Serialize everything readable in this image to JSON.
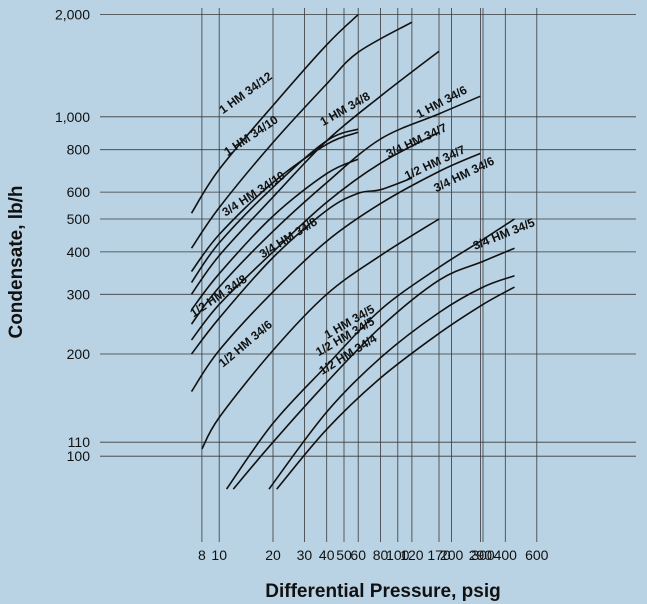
{
  "chart_data": {
    "type": "line",
    "title": "",
    "xlabel": "Differential Pressure, psig",
    "ylabel": "Condensate, lb/h",
    "x_scale": "log",
    "y_scale": "log",
    "xlim": [
      7,
      640
    ],
    "ylim": [
      80,
      2000
    ],
    "grid": true,
    "legend": "none",
    "x_ticks": [
      8,
      10,
      20,
      30,
      40,
      50,
      60,
      80,
      100,
      120,
      170,
      200,
      290,
      300,
      400,
      600
    ],
    "x_tick_labels": [
      "8",
      "10",
      "20",
      "30",
      "40",
      "50",
      "60",
      "80",
      "100",
      "120",
      "170",
      "200",
      "290",
      "300",
      "400",
      "600"
    ],
    "y_ticks": [
      100,
      110,
      200,
      300,
      400,
      500,
      600,
      800,
      1000,
      2000
    ],
    "y_tick_labels": [
      "100",
      "110",
      "200",
      "300",
      "400",
      "500",
      "600",
      "800",
      "1,000",
      "2,000"
    ],
    "series": [
      {
        "name": "1 HM 34/12",
        "x": [
          7,
          10,
          20,
          40,
          60
        ],
        "y": [
          520,
          700,
          1080,
          1630,
          2000
        ]
      },
      {
        "name": "1 HM 34/10",
        "x": [
          7,
          10,
          20,
          40,
          60,
          120
        ],
        "y": [
          410,
          540,
          840,
          1250,
          1550,
          1900
        ]
      },
      {
        "name": "1 HM 34/8",
        "x": [
          7,
          10,
          20,
          40,
          60
        ],
        "y": [
          350,
          450,
          640,
          830,
          900
        ]
      },
      {
        "name": "1 HM 34/6",
        "x": [
          7,
          10,
          20,
          40,
          80,
          170
        ],
        "y": [
          300,
          390,
          580,
          850,
          1150,
          1560
        ]
      },
      {
        "name": "3/4 HM 34/10",
        "x": [
          7,
          10,
          20,
          40,
          60
        ],
        "y": [
          325,
          425,
          620,
          850,
          920
        ]
      },
      {
        "name": "3/4 HM 34/8",
        "x": [
          7,
          10,
          20,
          40,
          60
        ],
        "y": [
          270,
          345,
          510,
          680,
          750
        ]
      },
      {
        "name": "3/4 HM 34/7",
        "x": [
          7,
          10,
          20,
          40,
          80,
          170,
          290
        ],
        "y": [
          245,
          315,
          460,
          640,
          860,
          1020,
          1150
        ]
      },
      {
        "name": "1/2 HM 34/7",
        "x": [
          7,
          10,
          20,
          40,
          80,
          170
        ],
        "y": [
          220,
          280,
          400,
          560,
          730,
          900
        ]
      },
      {
        "name": "1/2 HM 34/8",
        "x": [
          7,
          10,
          20,
          40,
          60,
          80,
          120
        ],
        "y": [
          200,
          255,
          385,
          530,
          595,
          610,
          660
        ]
      },
      {
        "name": "3/4 HM 34/6",
        "x": [
          7,
          10,
          20,
          40,
          80,
          170,
          290
        ],
        "y": [
          155,
          205,
          305,
          430,
          555,
          690,
          780
        ]
      },
      {
        "name": "1/2 HM 34/6",
        "x": [
          8,
          10,
          20,
          40,
          80,
          170
        ],
        "y": [
          105,
          130,
          205,
          300,
          390,
          500
        ]
      },
      {
        "name": "3/4 HM 34/5",
        "x": [
          11,
          20,
          40,
          80,
          170,
          290,
          450
        ],
        "y": [
          80,
          125,
          185,
          270,
          360,
          430,
          500
        ]
      },
      {
        "name": "1 HM 34/5",
        "x": [
          12,
          20,
          40,
          80,
          170,
          300,
          450
        ],
        "y": [
          80,
          110,
          165,
          240,
          330,
          375,
          410
        ]
      },
      {
        "name": "1/2 HM 34/5",
        "x": [
          19,
          40,
          80,
          170,
          300,
          450
        ],
        "y": [
          80,
          135,
          195,
          265,
          315,
          340
        ]
      },
      {
        "name": "1/2 HM 34/4",
        "x": [
          21,
          40,
          80,
          170,
          300,
          450
        ],
        "y": [
          80,
          120,
          170,
          230,
          280,
          315
        ]
      }
    ],
    "label_positions": [
      {
        "series": "1 HM 34/12",
        "x": 14.5,
        "y": 1150,
        "angle": -36
      },
      {
        "series": "1 HM 34/10",
        "x": 15.5,
        "y": 860,
        "angle": -34
      },
      {
        "series": "1 HM 34/8",
        "x": 52,
        "y": 1030,
        "angle": -30
      },
      {
        "series": "1 HM 34/6",
        "x": 180,
        "y": 1080,
        "angle": -28
      },
      {
        "series": "3/4 HM 34/10",
        "x": 16,
        "y": 580,
        "angle": -33
      },
      {
        "series": "3/4 HM 34/8",
        "x": 25,
        "y": 430,
        "angle": -32
      },
      {
        "series": "3/4 HM 34/7",
        "x": 130,
        "y": 830,
        "angle": -25
      },
      {
        "series": "1/2 HM 34/7",
        "x": 165,
        "y": 715,
        "angle": -25
      },
      {
        "series": "1/2 HM 34/8",
        "x": 10.2,
        "y": 290,
        "angle": -34
      },
      {
        "series": "3/4 HM 34/6",
        "x": 240,
        "y": 660,
        "angle": -26
      },
      {
        "series": "1/2 HM 34/6",
        "x": 14.5,
        "y": 210,
        "angle": -40
      },
      {
        "series": "3/4 HM 34/5",
        "x": 400,
        "y": 440,
        "angle": -22
      },
      {
        "series": "1 HM 34/5",
        "x": 55,
        "y": 243,
        "angle": -30
      },
      {
        "series": "1/2 HM 34/5",
        "x": 52,
        "y": 220,
        "angle": -30
      },
      {
        "series": "1/2 HM 34/4",
        "x": 54,
        "y": 195,
        "angle": -32
      }
    ]
  }
}
